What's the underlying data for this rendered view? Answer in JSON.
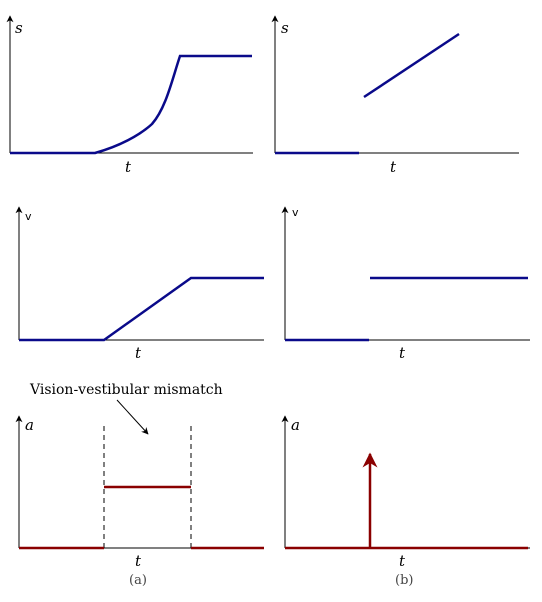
{
  "panels": {
    "a_pos": {
      "ylabel": "s",
      "xlabel": "t"
    },
    "b_pos": {
      "ylabel": "s",
      "xlabel": "t"
    },
    "a_vel": {
      "ylabel": "v",
      "xlabel": "t"
    },
    "b_vel": {
      "ylabel": "v",
      "xlabel": "t"
    },
    "a_acc": {
      "ylabel": "a",
      "xlabel": "t"
    },
    "b_acc": {
      "ylabel": "a",
      "xlabel": "t"
    }
  },
  "annotation": "Vision-vestibular mismatch",
  "captions": {
    "a": "(a)",
    "b": "(b)"
  },
  "colors": {
    "motion_curve": "#0a0a8a",
    "acceleration_curve": "#8a0000"
  }
}
